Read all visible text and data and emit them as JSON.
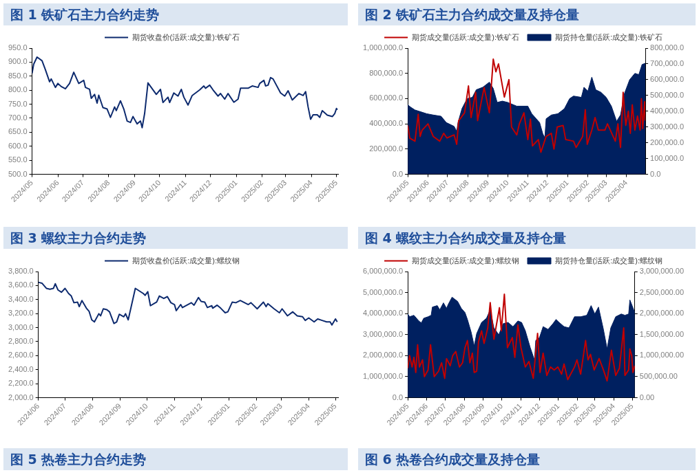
{
  "chart_data": [
    {
      "type": "line",
      "title": "图 1 铁矿石主力合约走势",
      "legend": "top",
      "xlim": [
        "2024-05-01",
        "2025-05-03"
      ],
      "xticks": [
        {
          "value": "2024-05-01",
          "label": "2024/05"
        },
        {
          "value": "2024-06-01",
          "label": "2024/06"
        },
        {
          "value": "2024-07-01",
          "label": "2024/07"
        },
        {
          "value": "2024-08-01",
          "label": "2024/08"
        },
        {
          "value": "2024-09-01",
          "label": "2024/09"
        },
        {
          "value": "2024-10-01",
          "label": "2024/10"
        },
        {
          "value": "2024-11-01",
          "label": "2024/11"
        },
        {
          "value": "2024-12-01",
          "label": "2024/12"
        },
        {
          "value": "2025-01-01",
          "label": "2025/01"
        },
        {
          "value": "2025-02-01",
          "label": "2025/02"
        },
        {
          "value": "2025-03-01",
          "label": "2025/03"
        },
        {
          "value": "2025-04-01",
          "label": "2025/04"
        },
        {
          "value": "2025-05-01",
          "label": "2025/05"
        }
      ],
      "ylim": [
        500,
        950
      ],
      "yticks": [
        {
          "value": 500,
          "label": "500.0"
        },
        {
          "value": 550,
          "label": "550.0"
        },
        {
          "value": 600,
          "label": "600.0"
        },
        {
          "value": 650,
          "label": "650.0"
        },
        {
          "value": 700,
          "label": "700.0"
        },
        {
          "value": 750,
          "label": "750.0"
        },
        {
          "value": 800,
          "label": "800.0"
        },
        {
          "value": 850,
          "label": "850.0"
        },
        {
          "value": 900,
          "label": "900.0"
        },
        {
          "value": 950,
          "label": "950.0"
        }
      ],
      "series": [
        {
          "name": "期货收盘价(活跃:成交量):铁矿石",
          "color": "#0d2a6e",
          "x": [
            "2024-05-01",
            "2024-05-03",
            "2024-05-07",
            "2024-05-13",
            "2024-05-17",
            "2024-05-22",
            "2024-05-24",
            "2024-05-29",
            "2024-06-01",
            "2024-06-05",
            "2024-06-10",
            "2024-06-15",
            "2024-06-20",
            "2024-06-26",
            "2024-07-02",
            "2024-07-04",
            "2024-07-09",
            "2024-07-11",
            "2024-07-15",
            "2024-07-18",
            "2024-07-20",
            "2024-07-25",
            "2024-07-30",
            "2024-08-03",
            "2024-08-08",
            "2024-08-10",
            "2024-08-15",
            "2024-08-19",
            "2024-08-23",
            "2024-08-27",
            "2024-08-30",
            "2024-09-04",
            "2024-09-08",
            "2024-09-10",
            "2024-09-13",
            "2024-09-17",
            "2024-09-27",
            "2024-10-02",
            "2024-10-05",
            "2024-10-11",
            "2024-10-13",
            "2024-10-18",
            "2024-10-23",
            "2024-10-27",
            "2024-10-30",
            "2024-11-04",
            "2024-11-09",
            "2024-11-18",
            "2024-11-23",
            "2024-11-25",
            "2024-11-30",
            "2024-12-04",
            "2024-12-10",
            "2024-12-13",
            "2024-12-18",
            "2024-12-22",
            "2024-12-29",
            "2025-01-03",
            "2025-01-06",
            "2025-01-15",
            "2025-01-20",
            "2025-01-27",
            "2025-01-29",
            "2025-02-03",
            "2025-02-05",
            "2025-02-08",
            "2025-02-11",
            "2025-02-14",
            "2025-02-23",
            "2025-02-28",
            "2025-03-04",
            "2025-03-09",
            "2025-03-17",
            "2025-03-22",
            "2025-03-25",
            "2025-03-28",
            "2025-03-31",
            "2025-04-03",
            "2025-04-08",
            "2025-04-11",
            "2025-04-14",
            "2025-04-20",
            "2025-04-26",
            "2025-04-29",
            "2025-05-01",
            "2025-05-02"
          ],
          "values": [
            860,
            893,
            918,
            905,
            873,
            830,
            840,
            810,
            824,
            813,
            805,
            824,
            864,
            824,
            835,
            810,
            803,
            771,
            785,
            754,
            782,
            738,
            733,
            703,
            740,
            727,
            762,
            733,
            690,
            685,
            706,
            680,
            690,
            666,
            717,
            826,
            785,
            803,
            756,
            775,
            756,
            790,
            779,
            803,
            775,
            747,
            781,
            801,
            815,
            807,
            818,
            801,
            779,
            788,
            768,
            788,
            757,
            768,
            807,
            807,
            815,
            810,
            824,
            835,
            815,
            818,
            845,
            840,
            790,
            779,
            798,
            765,
            788,
            781,
            795,
            740,
            696,
            712,
            712,
            703,
            727,
            711,
            706,
            717,
            735,
            730
          ]
        }
      ]
    },
    {
      "type": "area",
      "title": "图 2 铁矿石主力合约成交量及持仓量",
      "legend": "top",
      "xlim": [
        "2024-05-01",
        "2025-04-30"
      ],
      "xticks": [
        {
          "value": "2024-05-01",
          "label": "2024/05"
        },
        {
          "value": "2024-06-01",
          "label": "2024/06"
        },
        {
          "value": "2024-07-01",
          "label": "2024/07"
        },
        {
          "value": "2024-08-01",
          "label": "2024/08"
        },
        {
          "value": "2024-09-01",
          "label": "2024/09"
        },
        {
          "value": "2024-10-01",
          "label": "2024/10"
        },
        {
          "value": "2024-11-01",
          "label": "2024/11"
        },
        {
          "value": "2024-12-01",
          "label": "2024/12"
        },
        {
          "value": "2025-01-01",
          "label": "2025/01"
        },
        {
          "value": "2025-02-01",
          "label": "2025/02"
        },
        {
          "value": "2025-03-01",
          "label": "2025/03"
        },
        {
          "value": "2025-04-01",
          "label": "2025/04"
        }
      ],
      "ylim": [
        0,
        1000000
      ],
      "yticks": [
        {
          "value": 0,
          "label": "0.0"
        },
        {
          "value": 200000,
          "label": "200,000.0"
        },
        {
          "value": 400000,
          "label": "400,000.0"
        },
        {
          "value": 600000,
          "label": "600,000.0"
        },
        {
          "value": 800000,
          "label": "800,000.0"
        },
        {
          "value": 1000000,
          "label": "1,000,000.0"
        }
      ],
      "y2lim": [
        0,
        800000
      ],
      "y2ticks": [
        {
          "value": 0,
          "label": "0.0"
        },
        {
          "value": 100000,
          "label": "100,000.0"
        },
        {
          "value": 200000,
          "label": "200,000.0"
        },
        {
          "value": 300000,
          "label": "300,000.0"
        },
        {
          "value": 400000,
          "label": "400,000.0"
        },
        {
          "value": 500000,
          "label": "500,000.0"
        },
        {
          "value": 600000,
          "label": "600,000.0"
        },
        {
          "value": 700000,
          "label": "700,000.0"
        },
        {
          "value": 800000,
          "label": "800,000.0"
        }
      ],
      "series": [
        {
          "name": "期货持仓量(活跃:成交量):铁矿石",
          "color": "#002060",
          "x": [
            "2024-05-01",
            "2024-05-06",
            "2024-05-12",
            "2024-05-24",
            "2024-05-30",
            "2024-06-09",
            "2024-06-21",
            "2024-06-29",
            "2024-07-11",
            "2024-07-15",
            "2024-07-17",
            "2024-07-23",
            "2024-07-31",
            "2024-08-08",
            "2024-08-14",
            "2024-08-24",
            "2024-09-03",
            "2024-09-09",
            "2024-09-15",
            "2024-09-23",
            "2024-10-01",
            "2024-10-15",
            "2024-11-01",
            "2024-11-07",
            "2024-11-19",
            "2024-11-24",
            "2024-11-27",
            "2024-11-29",
            "2024-12-07",
            "2024-12-17",
            "2024-12-27",
            "2025-01-04",
            "2025-01-10",
            "2025-01-22",
            "2025-01-26",
            "2025-02-01",
            "2025-02-07",
            "2025-02-13",
            "2025-02-21",
            "2025-03-01",
            "2025-03-09",
            "2025-03-17",
            "2025-03-23",
            "2025-03-29",
            "2025-04-06",
            "2025-04-14",
            "2025-04-20",
            "2025-04-25",
            "2025-04-30"
          ],
          "values": [
            550000,
            530000,
            510000,
            490000,
            480000,
            470000,
            460000,
            410000,
            380000,
            340000,
            410000,
            520000,
            600000,
            610000,
            670000,
            690000,
            730000,
            680000,
            570000,
            580000,
            570000,
            540000,
            540000,
            480000,
            410000,
            320000,
            290000,
            440000,
            470000,
            480000,
            520000,
            600000,
            620000,
            610000,
            690000,
            660000,
            770000,
            670000,
            650000,
            610000,
            540000,
            420000,
            470000,
            640000,
            750000,
            800000,
            790000,
            870000,
            880000
          ]
        },
        {
          "name": "期货成交量(活跃:成交量):铁矿石",
          "color": "#c00000",
          "type": "line",
          "axis": "y2",
          "x": [
            "2024-05-01",
            "2024-05-04",
            "2024-05-12",
            "2024-05-17",
            "2024-05-20",
            "2024-05-23",
            "2024-06-01",
            "2024-06-09",
            "2024-06-19",
            "2024-06-25",
            "2024-06-30",
            "2024-07-11",
            "2024-07-15",
            "2024-07-18",
            "2024-07-27",
            "2024-08-02",
            "2024-08-06",
            "2024-08-13",
            "2024-08-16",
            "2024-08-26",
            "2024-09-03",
            "2024-09-09",
            "2024-09-13",
            "2024-09-17",
            "2024-09-26",
            "2024-10-03",
            "2024-10-07",
            "2024-10-15",
            "2024-10-19",
            "2024-10-26",
            "2024-11-01",
            "2024-11-05",
            "2024-11-08",
            "2024-11-17",
            "2024-11-21",
            "2024-11-29",
            "2024-12-07",
            "2024-12-11",
            "2024-12-16",
            "2024-12-25",
            "2024-12-29",
            "2025-01-10",
            "2025-01-14",
            "2025-01-24",
            "2025-01-28",
            "2025-01-31",
            "2025-02-07",
            "2025-02-12",
            "2025-02-17",
            "2025-02-27",
            "2025-03-03",
            "2025-03-15",
            "2025-03-19",
            "2025-03-23",
            "2025-03-27",
            "2025-03-31",
            "2025-04-04",
            "2025-04-07",
            "2025-04-10",
            "2025-04-14",
            "2025-04-18",
            "2025-04-22",
            "2025-04-24",
            "2025-04-26",
            "2025-04-29",
            "2025-04-30"
          ],
          "values": [
            310000,
            230000,
            210000,
            380000,
            240000,
            280000,
            320000,
            240000,
            210000,
            260000,
            230000,
            250000,
            190000,
            340000,
            390000,
            560000,
            360000,
            520000,
            340000,
            550000,
            390000,
            730000,
            650000,
            700000,
            490000,
            600000,
            300000,
            250000,
            320000,
            390000,
            220000,
            350000,
            180000,
            220000,
            140000,
            240000,
            260000,
            160000,
            300000,
            310000,
            220000,
            210000,
            170000,
            240000,
            410000,
            190000,
            280000,
            360000,
            280000,
            280000,
            320000,
            210000,
            320000,
            170000,
            520000,
            310000,
            400000,
            260000,
            440000,
            280000,
            370000,
            280000,
            480000,
            290000,
            460000,
            340000
          ]
        }
      ]
    },
    {
      "type": "line",
      "title": "图 3 螺纹主力合约走势",
      "legend": "top",
      "xlim": [
        "2024-06-01",
        "2025-05-04"
      ],
      "xticks": [
        {
          "value": "2024-06-01",
          "label": "2024/06"
        },
        {
          "value": "2024-07-01",
          "label": "2024/07"
        },
        {
          "value": "2024-08-01",
          "label": "2024/08"
        },
        {
          "value": "2024-09-01",
          "label": "2024/09"
        },
        {
          "value": "2024-10-01",
          "label": "2024/10"
        },
        {
          "value": "2024-11-01",
          "label": "2024/11"
        },
        {
          "value": "2024-12-01",
          "label": "2024/12"
        },
        {
          "value": "2025-01-01",
          "label": "2025/01"
        },
        {
          "value": "2025-02-01",
          "label": "2025/02"
        },
        {
          "value": "2025-03-01",
          "label": "2025/03"
        },
        {
          "value": "2025-04-01",
          "label": "2025/04"
        },
        {
          "value": "2025-05-01",
          "label": "2025/05"
        }
      ],
      "ylim": [
        2000,
        3800
      ],
      "yticks": [
        {
          "value": 2000,
          "label": "2,000.0"
        },
        {
          "value": 2200,
          "label": "2,200.0"
        },
        {
          "value": 2400,
          "label": "2,400.0"
        },
        {
          "value": 2600,
          "label": "2,600.0"
        },
        {
          "value": 2800,
          "label": "2,800.0"
        },
        {
          "value": 3000,
          "label": "3,000.0"
        },
        {
          "value": 3200,
          "label": "3,200.0"
        },
        {
          "value": 3400,
          "label": "3,400.0"
        },
        {
          "value": 3600,
          "label": "3,600.0"
        },
        {
          "value": 3800,
          "label": "3,800.0"
        }
      ],
      "series": [
        {
          "name": "期货收盘价(活跃:成交量):螺纹钢",
          "color": "#0d2a6e",
          "x": [
            "2024-06-01",
            "2024-06-05",
            "2024-06-10",
            "2024-06-14",
            "2024-06-18",
            "2024-06-20",
            "2024-06-23",
            "2024-06-27",
            "2024-07-01",
            "2024-07-05",
            "2024-07-08",
            "2024-07-11",
            "2024-07-15",
            "2024-07-17",
            "2024-07-20",
            "2024-07-25",
            "2024-07-28",
            "2024-07-31",
            "2024-08-03",
            "2024-08-08",
            "2024-08-10",
            "2024-08-13",
            "2024-08-17",
            "2024-08-20",
            "2024-08-25",
            "2024-08-28",
            "2024-08-31",
            "2024-09-05",
            "2024-09-07",
            "2024-09-10",
            "2024-09-13",
            "2024-09-18",
            "2024-09-27",
            "2024-09-29",
            "2024-10-02",
            "2024-10-05",
            "2024-10-09",
            "2024-10-12",
            "2024-10-15",
            "2024-10-20",
            "2024-10-24",
            "2024-10-28",
            "2024-11-01",
            "2024-11-03",
            "2024-11-08",
            "2024-11-10",
            "2024-11-20",
            "2024-11-23",
            "2024-11-28",
            "2024-12-01",
            "2024-12-05",
            "2024-12-08",
            "2024-12-13",
            "2024-12-14",
            "2024-12-19",
            "2024-12-23",
            "2024-12-28",
            "2024-12-31",
            "2025-01-05",
            "2025-01-09",
            "2025-01-14",
            "2025-01-23",
            "2025-01-26",
            "2025-02-02",
            "2025-02-09",
            "2025-02-12",
            "2025-02-14",
            "2025-02-21",
            "2025-02-27",
            "2025-03-02",
            "2025-03-08",
            "2025-03-14",
            "2025-03-19",
            "2025-03-25",
            "2025-03-28",
            "2025-04-01",
            "2025-04-07",
            "2025-04-11",
            "2025-04-16",
            "2025-04-21",
            "2025-04-25",
            "2025-04-27",
            "2025-05-01",
            "2025-05-03"
          ],
          "values": [
            3647,
            3634,
            3560,
            3547,
            3560,
            3626,
            3538,
            3504,
            3560,
            3486,
            3451,
            3355,
            3364,
            3299,
            3386,
            3277,
            3233,
            3111,
            3081,
            3198,
            3168,
            3268,
            3255,
            3225,
            3059,
            3081,
            3190,
            3155,
            3198,
            3111,
            3277,
            3560,
            3486,
            3460,
            3512,
            3312,
            3342,
            3364,
            3451,
            3416,
            3442,
            3355,
            3329,
            3242,
            3329,
            3286,
            3355,
            3320,
            3429,
            3373,
            3364,
            3286,
            3312,
            3277,
            3320,
            3277,
            3212,
            3225,
            3364,
            3355,
            3386,
            3329,
            3355,
            3268,
            3364,
            3299,
            3342,
            3268,
            3212,
            3268,
            3168,
            3225,
            3168,
            3155,
            3103,
            3138,
            3081,
            3124,
            3103,
            3081,
            3081,
            3037,
            3124,
            3081
          ]
        }
      ]
    },
    {
      "type": "area",
      "title": "图 4 螺纹主力合约成交量及持仓量",
      "legend": "top",
      "xlim": [
        "2024-05-01",
        "2025-05-05"
      ],
      "xticks": [
        {
          "value": "2024-05-01",
          "label": "2024/05"
        },
        {
          "value": "2024-06-01",
          "label": "2024/06"
        },
        {
          "value": "2024-07-01",
          "label": "2024/07"
        },
        {
          "value": "2024-08-01",
          "label": "2024/08"
        },
        {
          "value": "2024-09-01",
          "label": "2024/09"
        },
        {
          "value": "2024-10-01",
          "label": "2024/10"
        },
        {
          "value": "2024-11-01",
          "label": "2024/11"
        },
        {
          "value": "2024-12-01",
          "label": "2024/12"
        },
        {
          "value": "2025-01-01",
          "label": "2025/01"
        },
        {
          "value": "2025-02-01",
          "label": "2025/02"
        },
        {
          "value": "2025-03-01",
          "label": "2025/03"
        },
        {
          "value": "2025-04-01",
          "label": "2025/04"
        },
        {
          "value": "2025-05-01",
          "label": "2025/05"
        }
      ],
      "ylim": [
        0,
        6000000
      ],
      "yticks": [
        {
          "value": 0,
          "label": "0.0"
        },
        {
          "value": 1000000,
          "label": "1,000,000.0"
        },
        {
          "value": 2000000,
          "label": "2,000,000.0"
        },
        {
          "value": 3000000,
          "label": "3,000,000.0"
        },
        {
          "value": 4000000,
          "label": "4,000,000.0"
        },
        {
          "value": 5000000,
          "label": "5,000,000.0"
        },
        {
          "value": 6000000,
          "label": "6,000,000.0"
        }
      ],
      "y2lim": [
        0,
        3000000
      ],
      "y2ticks": [
        {
          "value": 0,
          "label": "0.00"
        },
        {
          "value": 500000,
          "label": "500,000.00"
        },
        {
          "value": 1000000,
          "label": "1,000,000.00"
        },
        {
          "value": 1500000,
          "label": "1,500,000.00"
        },
        {
          "value": 2000000,
          "label": "2,000,000.00"
        },
        {
          "value": 2500000,
          "label": "2,500,000.00"
        },
        {
          "value": 3000000,
          "label": "3,000,000.00"
        }
      ],
      "series": [
        {
          "name": "期货持仓量(活跃:成交量):螺纹钢",
          "color": "#002060",
          "x": [
            "2024-05-01",
            "2024-05-04",
            "2024-05-11",
            "2024-05-19",
            "2024-05-23",
            "2024-05-27",
            "2024-06-03",
            "2024-06-08",
            "2024-06-10",
            "2024-06-18",
            "2024-06-22",
            "2024-06-28",
            "2024-07-03",
            "2024-07-06",
            "2024-07-12",
            "2024-07-21",
            "2024-07-27",
            "2024-08-02",
            "2024-08-06",
            "2024-08-12",
            "2024-08-17",
            "2024-08-21",
            "2024-08-29",
            "2024-09-06",
            "2024-09-12",
            "2024-09-18",
            "2024-09-26",
            "2024-10-03",
            "2024-10-11",
            "2024-10-19",
            "2024-10-27",
            "2024-11-02",
            "2024-11-08",
            "2024-11-16",
            "2024-11-23",
            "2024-11-25",
            "2024-12-01",
            "2024-12-07",
            "2024-12-15",
            "2024-12-23",
            "2024-12-28",
            "2025-01-02",
            "2025-01-10",
            "2025-01-18",
            "2025-01-27",
            "2025-02-06",
            "2025-02-16",
            "2025-02-23",
            "2025-03-01",
            "2025-03-07",
            "2025-03-15",
            "2025-03-21",
            "2025-03-27",
            "2025-04-04",
            "2025-04-13",
            "2025-04-19",
            "2025-04-25",
            "2025-04-27",
            "2025-05-05"
          ],
          "values": [
            3980000,
            3850000,
            3920000,
            3650000,
            3560000,
            3780000,
            3850000,
            3920000,
            4310000,
            4380000,
            4180000,
            4510000,
            4250000,
            4450000,
            4780000,
            4580000,
            4250000,
            4050000,
            3720000,
            3120000,
            2460000,
            3050000,
            3580000,
            3780000,
            4180000,
            3320000,
            2990000,
            3520000,
            3580000,
            3380000,
            3650000,
            3580000,
            3190000,
            2390000,
            1790000,
            2720000,
            2850000,
            3380000,
            3250000,
            3520000,
            3720000,
            3580000,
            3380000,
            3320000,
            3850000,
            3850000,
            3920000,
            4380000,
            3980000,
            4310000,
            3250000,
            2320000,
            3320000,
            3850000,
            3980000,
            3920000,
            3980000,
            4650000,
            4050000
          ]
        },
        {
          "name": "期货成交量(活跃:成交量):螺纹钢",
          "color": "#c00000",
          "type": "line",
          "axis": "y2",
          "x": [
            "2024-05-01",
            "2024-05-04",
            "2024-05-08",
            "2024-05-11",
            "2024-05-14",
            "2024-05-17",
            "2024-05-20",
            "2024-05-25",
            "2024-05-28",
            "2024-06-03",
            "2024-06-07",
            "2024-06-13",
            "2024-06-20",
            "2024-06-25",
            "2024-06-30",
            "2024-07-03",
            "2024-07-09",
            "2024-07-13",
            "2024-07-18",
            "2024-07-24",
            "2024-07-29",
            "2024-08-02",
            "2024-08-06",
            "2024-08-10",
            "2024-08-14",
            "2024-08-17",
            "2024-08-21",
            "2024-08-24",
            "2024-08-29",
            "2024-09-02",
            "2024-09-08",
            "2024-09-12",
            "2024-09-18",
            "2024-09-27",
            "2024-09-30",
            "2024-10-05",
            "2024-10-10",
            "2024-10-18",
            "2024-10-22",
            "2024-10-27",
            "2024-11-01",
            "2024-11-08",
            "2024-11-14",
            "2024-11-21",
            "2024-11-28",
            "2024-12-02",
            "2024-12-07",
            "2024-12-13",
            "2024-12-19",
            "2024-12-25",
            "2024-12-31",
            "2025-01-06",
            "2025-01-10",
            "2025-01-16",
            "2025-01-27",
            "2025-01-31",
            "2025-02-06",
            "2025-02-14",
            "2025-02-18",
            "2025-02-22",
            "2025-02-28",
            "2025-03-08",
            "2025-03-15",
            "2025-03-21",
            "2025-03-28",
            "2025-04-04",
            "2025-04-10",
            "2025-04-17",
            "2025-04-19",
            "2025-04-25",
            "2025-04-27",
            "2025-04-30",
            "2025-05-02",
            "2025-05-05"
          ],
          "values": [
            700000,
            1000000,
            730000,
            960000,
            600000,
            1260000,
            730000,
            900000,
            500000,
            660000,
            1260000,
            500000,
            630000,
            830000,
            460000,
            930000,
            760000,
            1000000,
            1100000,
            730000,
            830000,
            1190000,
            1360000,
            830000,
            1060000,
            600000,
            630000,
            1330000,
            1590000,
            1290000,
            1660000,
            2260000,
            1390000,
            2140000,
            1590000,
            2460000,
            1190000,
            1430000,
            960000,
            1730000,
            1190000,
            730000,
            860000,
            460000,
            1530000,
            600000,
            1060000,
            530000,
            730000,
            660000,
            730000,
            560000,
            800000,
            430000,
            730000,
            900000,
            560000,
            1360000,
            900000,
            1030000,
            660000,
            930000,
            660000,
            400000,
            1130000,
            530000,
            700000,
            1660000,
            530000,
            660000,
            1160000,
            1000000,
            600000,
            760000
          ]
        }
      ]
    },
    {
      "type": "other",
      "title": "图 5 热卷主力合约走势"
    },
    {
      "type": "other",
      "title": "图 6 热卷合约成交量及持仓量"
    }
  ]
}
